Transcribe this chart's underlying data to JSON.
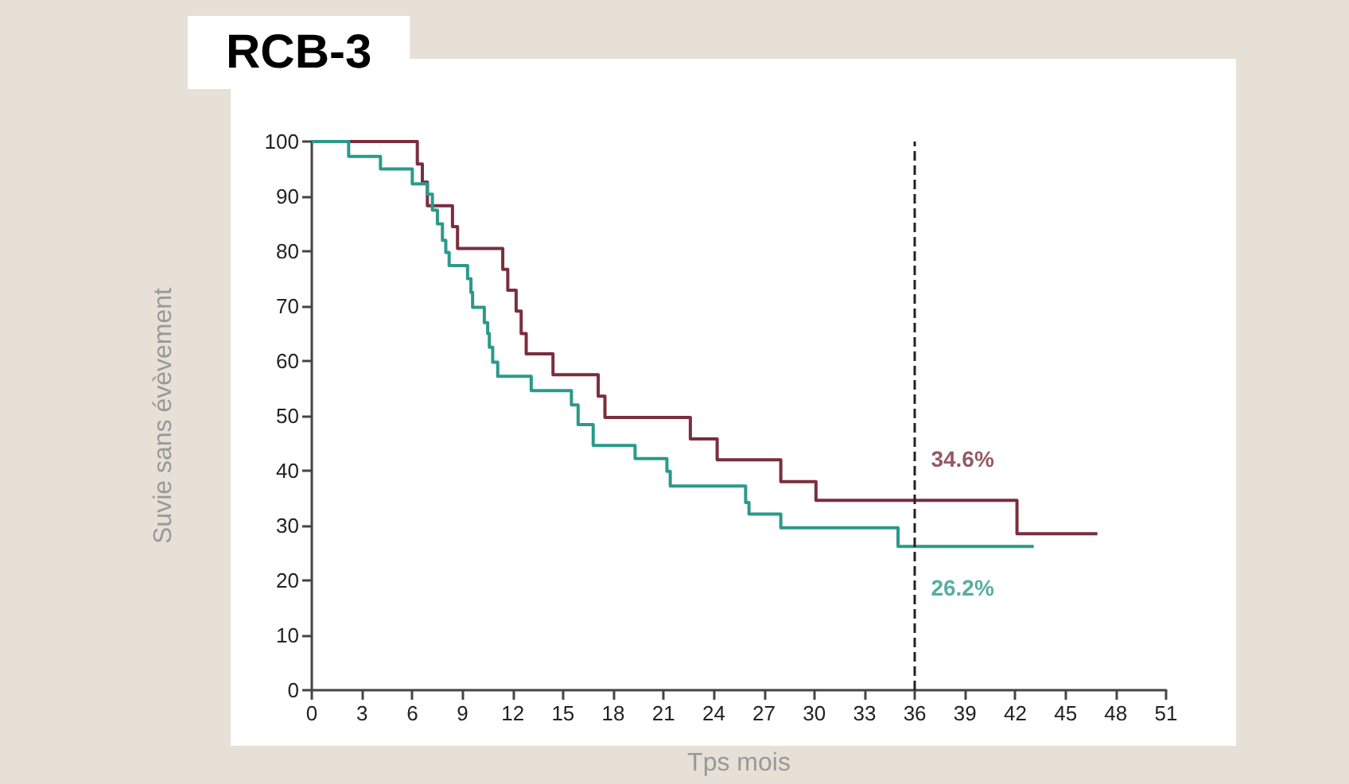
{
  "chart_data": {
    "type": "step",
    "title": "RCB-3",
    "xlabel": "Tps mois",
    "ylabel": "Suvie sans évèvement",
    "xlim": [
      0,
      51
    ],
    "xticks": [
      0,
      3,
      6,
      9,
      12,
      15,
      18,
      21,
      24,
      27,
      30,
      33,
      36,
      39,
      42,
      45,
      48,
      51
    ],
    "ylim": [
      0,
      100
    ],
    "yticks": [
      0,
      10,
      20,
      30,
      40,
      50,
      60,
      70,
      80,
      90,
      100
    ],
    "grid": false,
    "marker": "none",
    "line_style": "solid",
    "series": [
      {
        "color": "#7a2e3e",
        "x": [
          0,
          6.3,
          6.6,
          6.9,
          8.4,
          8.7,
          11.4,
          11.7,
          12.2,
          12.5,
          12.8,
          14.4,
          17.1,
          17.5,
          22.6,
          24.2,
          28.0,
          30.1,
          42.1,
          46.9
        ],
        "values": [
          100,
          95.9,
          92.6,
          88.3,
          84.5,
          80.5,
          76.7,
          72.9,
          69.1,
          65,
          61.3,
          57.5,
          53.6,
          49.7,
          45.8,
          42,
          38,
          34.6,
          28.5,
          28.5
        ]
      },
      {
        "color": "#2a9a8a",
        "x": [
          0,
          2.2,
          4.1,
          6.0,
          6.9,
          7.2,
          7.5,
          7.8,
          8.0,
          8.2,
          9.3,
          9.5,
          9.6,
          10.3,
          10.5,
          10.6,
          10.8,
          11.1,
          13.1,
          15.5,
          15.9,
          16.8,
          19.3,
          21.2,
          21.4,
          25.9,
          26.1,
          28.0,
          35.0,
          43.1
        ],
        "values": [
          100,
          97.3,
          95,
          92.3,
          90.4,
          87.5,
          85,
          82,
          79.8,
          77.4,
          75,
          72.5,
          69.8,
          67,
          65,
          62.5,
          59.8,
          57.2,
          54.6,
          52,
          48.4,
          44.6,
          42.2,
          39.9,
          37.2,
          34.2,
          32.1,
          29.6,
          26.2,
          26.2
        ]
      }
    ],
    "ref_lines": [
      {
        "axis": "x",
        "value": 36,
        "color": "#222222",
        "line_style": "dashed"
      }
    ],
    "annotations": [
      {
        "text": "34.6%",
        "x": 36,
        "y": 34.6
      },
      {
        "text": "26.2%",
        "x": 36,
        "y": 26.2
      }
    ]
  }
}
